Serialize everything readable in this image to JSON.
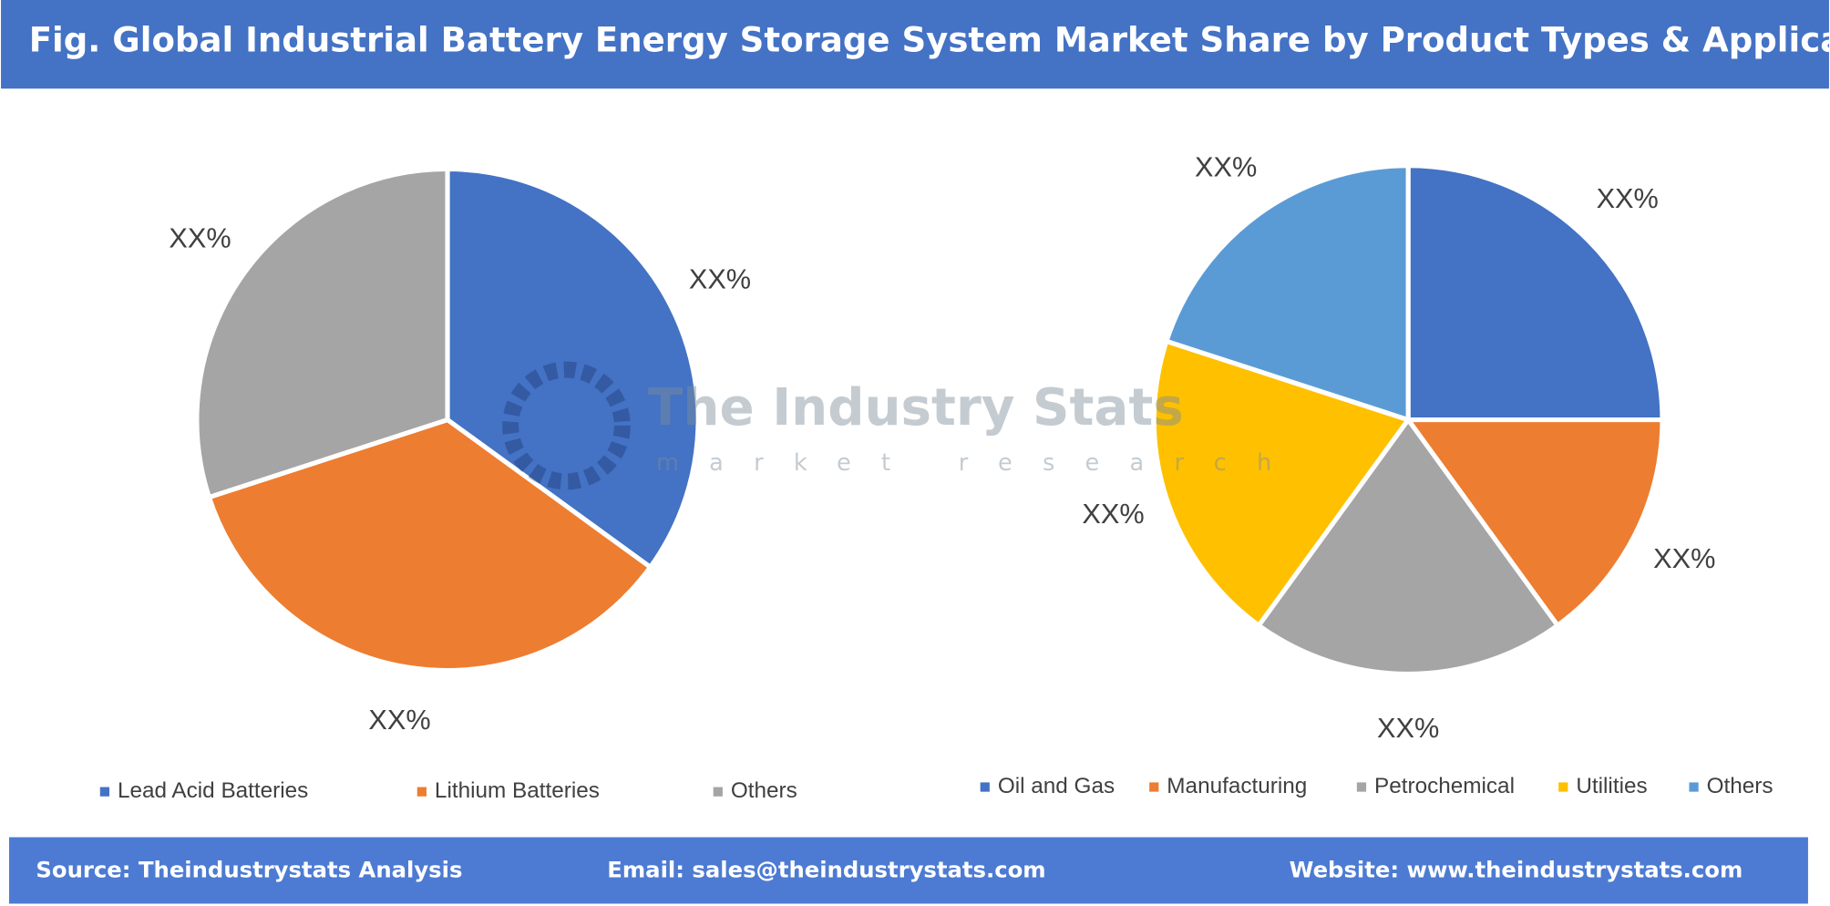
{
  "title": "Fig. Global Industrial Battery Energy Storage System Market Share by Product Types & Application",
  "watermark": {
    "name": "The Industry Stats",
    "tagline": "market research"
  },
  "footer": {
    "source": "Source: Theindustrystats Analysis",
    "email": "Email: sales@theindustrystats.com",
    "website": "Website: www.theindustrystats.com"
  },
  "chart_data": [
    {
      "type": "pie",
      "categories": [
        "Lead Acid Batteries",
        "Lithium Batteries",
        "Others"
      ],
      "values": [
        35,
        35,
        30
      ],
      "value_labels": [
        "XX%",
        "XX%",
        "XX%"
      ],
      "colors": [
        "#4472c4",
        "#ed7d31",
        "#a5a5a5"
      ],
      "legend": "bottom"
    },
    {
      "type": "pie",
      "categories": [
        "Oil and Gas",
        "Manufacturing",
        "Petrochemical",
        "Utilities",
        "Others"
      ],
      "values": [
        25,
        15,
        20,
        20,
        20
      ],
      "value_labels": [
        "XX%",
        "XX%",
        "XX%",
        "XX%",
        "XX%"
      ],
      "colors": [
        "#4472c4",
        "#ed7d31",
        "#a5a5a5",
        "#ffc000",
        "#5b9bd5"
      ],
      "legend": "bottom"
    }
  ]
}
